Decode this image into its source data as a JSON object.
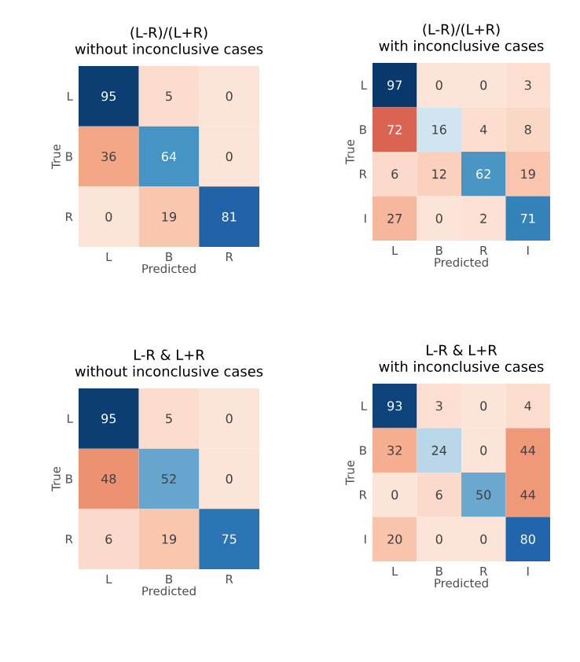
{
  "chart_data": [
    {
      "type": "heatmap",
      "title": "(L-R)/(L+R)",
      "subtitle": "without inconclusive cases",
      "xlabel": "Predicted",
      "ylabel": "True",
      "categories": [
        "L",
        "B",
        "R"
      ],
      "y_categories": [
        "L",
        "B",
        "R"
      ],
      "data_labels": true,
      "cells": [
        [
          95,
          5,
          0
        ],
        [
          36,
          64,
          0
        ],
        [
          0,
          19,
          81
        ]
      ]
    },
    {
      "type": "heatmap",
      "title": "(L-R)/(L+R)",
      "subtitle": "with inconclusive cases",
      "xlabel": "Predicted",
      "ylabel": "True",
      "categories": [
        "L",
        "B",
        "R",
        "I"
      ],
      "y_categories": [
        "L",
        "B",
        "R",
        "I"
      ],
      "data_labels": true,
      "cells": [
        [
          97,
          0,
          0,
          3
        ],
        [
          72,
          16,
          4,
          8
        ],
        [
          6,
          12,
          62,
          19
        ],
        [
          27,
          0,
          2,
          71
        ]
      ]
    },
    {
      "type": "heatmap",
      "title": "L-R & L+R",
      "subtitle": "without inconclusive cases",
      "xlabel": "Predicted",
      "ylabel": "True",
      "categories": [
        "L",
        "B",
        "R"
      ],
      "y_categories": [
        "L",
        "B",
        "R"
      ],
      "data_labels": true,
      "cells": [
        [
          95,
          5,
          0
        ],
        [
          48,
          52,
          0
        ],
        [
          6,
          19,
          75
        ]
      ]
    },
    {
      "type": "heatmap",
      "title": "L-R & L+R",
      "subtitle": "with inconclusive cases",
      "xlabel": "Predicted",
      "ylabel": "True",
      "categories": [
        "L",
        "B",
        "R",
        "I"
      ],
      "y_categories": [
        "L",
        "B",
        "R",
        "I"
      ],
      "data_labels": true,
      "cells": [
        [
          93,
          3,
          0,
          4
        ],
        [
          32,
          24,
          0,
          44
        ],
        [
          0,
          6,
          50,
          44
        ],
        [
          20,
          0,
          0,
          80
        ]
      ]
    }
  ]
}
